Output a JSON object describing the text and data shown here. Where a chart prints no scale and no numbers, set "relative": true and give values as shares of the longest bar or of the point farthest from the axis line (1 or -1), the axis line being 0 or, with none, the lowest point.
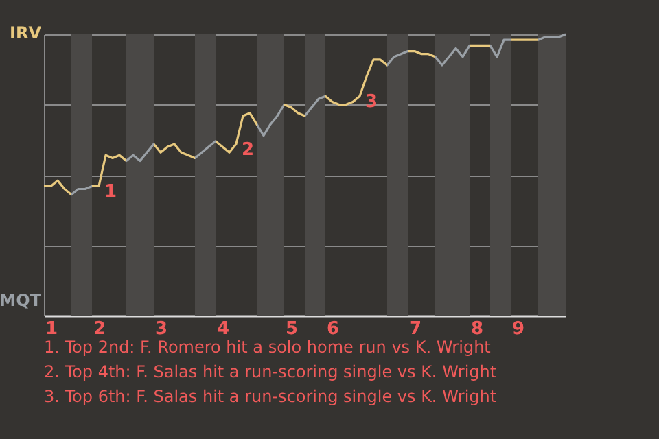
{
  "chart_data": {
    "type": "line",
    "relative": true,
    "categories": [
      null,
      "1",
      null,
      null,
      null,
      null,
      null,
      null,
      "2",
      null,
      null,
      null,
      null,
      null,
      null,
      null,
      null,
      "3",
      null,
      null,
      null,
      null,
      null,
      null,
      null,
      null,
      "4",
      null,
      null,
      null,
      null,
      null,
      null,
      null,
      null,
      null,
      "5",
      null,
      null,
      null,
      null,
      null,
      "6",
      null,
      null,
      null,
      null,
      null,
      null,
      null,
      null,
      null,
      null,
      null,
      "7",
      null,
      null,
      null,
      null,
      null,
      null,
      null,
      null,
      "8",
      null,
      null,
      null,
      null,
      null,
      "9",
      null,
      null,
      null,
      null,
      null,
      null,
      null
    ],
    "series": [
      {
        "values": [
          0.46,
          0.46,
          0.48,
          0.45,
          0.43,
          0.45,
          0.45,
          0.46,
          0.46,
          0.57,
          0.56,
          0.57,
          0.55,
          0.57,
          0.55,
          0.58,
          0.61,
          0.58,
          0.6,
          0.61,
          0.58,
          0.57,
          0.56,
          0.58,
          0.6,
          0.62,
          0.6,
          0.58,
          0.61,
          0.71,
          0.72,
          0.68,
          0.64,
          0.68,
          0.71,
          0.75,
          0.74,
          0.72,
          0.71,
          0.74,
          0.77,
          0.78,
          0.76,
          0.75,
          0.75,
          0.76,
          0.78,
          0.85,
          0.91,
          0.91,
          0.89,
          0.92,
          0.93,
          0.94,
          0.94,
          0.93,
          0.93,
          0.92,
          0.89,
          0.92,
          0.95,
          0.92,
          0.96,
          0.96,
          0.96,
          0.96,
          0.92,
          0.98,
          0.98,
          0.98,
          0.98,
          0.98,
          0.98,
          0.99,
          0.99,
          0.99,
          1
        ],
        "colors": [
          "#e8c97e",
          "#e8c97e",
          "#e8c97e",
          "#e8c97e",
          "#9aa0a6",
          "#9aa0a6",
          "#9aa0a6",
          "#e8c97e",
          "#e8c97e",
          "#e8c97e",
          "#e8c97e",
          "#e8c97e",
          "#9aa0a6",
          "#9aa0a6",
          "#9aa0a6",
          "#9aa0a6",
          "#e8c97e",
          "#e8c97e",
          "#e8c97e",
          "#e8c97e",
          "#e8c97e",
          "#e8c97e",
          "#9aa0a6",
          "#9aa0a6",
          "#9aa0a6",
          "#e8c97e",
          "#e8c97e",
          "#e8c97e",
          "#e8c97e",
          "#e8c97e",
          "#e8c97e",
          "#9aa0a6",
          "#9aa0a6",
          "#9aa0a6",
          "#9aa0a6",
          "#e8c97e",
          "#e8c97e",
          "#e8c97e",
          "#9aa0a6",
          "#9aa0a6",
          "#9aa0a6",
          "#e8c97e",
          "#e8c97e",
          "#e8c97e",
          "#e8c97e",
          "#e8c97e",
          "#e8c97e",
          "#e8c97e",
          "#e8c97e",
          "#e8c97e",
          "#9aa0a6",
          "#9aa0a6",
          "#9aa0a6",
          "#e8c97e",
          "#e8c97e",
          "#e8c97e",
          "#e8c97e",
          "#9aa0a6",
          "#9aa0a6",
          "#9aa0a6",
          "#9aa0a6",
          "#9aa0a6",
          "#e8c97e",
          "#e8c97e",
          "#e8c97e",
          "#9aa0a6",
          "#9aa0a6",
          "#9aa0a6",
          "#e8c97e",
          "#e8c97e",
          "#e8c97e",
          "#e8c97e",
          "#9aa0a6",
          "#9aa0a6",
          "#9aa0a6",
          "#9aa0a6",
          "#9aa0a6"
        ]
      }
    ],
    "grid": "y",
    "annotations": [
      "IRV",
      "MQT",
      "1",
      "2",
      "3",
      "1. Top 2nd: F. Romero hit a solo home run vs K. Wright",
      "2. Top 4th: F. Salas hit a run-scoring single vs K. Wright",
      "3. Top 6th: F. Salas hit a run-scoring single vs K. Wright"
    ]
  }
}
